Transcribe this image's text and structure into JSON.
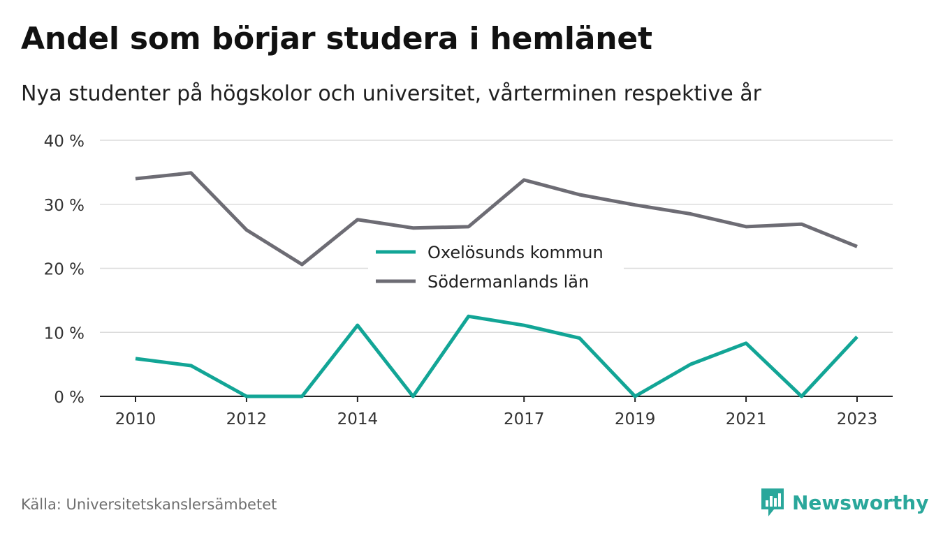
{
  "header": {
    "title": "Andel som börjar studera i hemlänet",
    "subtitle": "Nya studenter på högskolor och universitet, vårterminen respektive år"
  },
  "footer": {
    "source": "Källa: Universitetskanslersämbetet",
    "brand": "Newsworthy"
  },
  "colors": {
    "oxelosund": "#12a596",
    "sodermanland": "#6d6c74",
    "grid": "#dcdcdc",
    "axis": "#222222",
    "brand": "#2aa79b"
  },
  "icons": {
    "logo": "newsworthy-chart-bubble-icon"
  },
  "chart_data": {
    "type": "line",
    "title": "Andel som börjar studera i hemlänet",
    "subtitle": "Nya studenter på högskolor och universitet, vårterminen respektive år",
    "x": [
      2010,
      2011,
      2012,
      2013,
      2014,
      2015,
      2016,
      2017,
      2018,
      2019,
      2020,
      2021,
      2022,
      2023
    ],
    "x_tick_values": [
      2010,
      2012,
      2014,
      2017,
      2019,
      2021,
      2023
    ],
    "x_tick_labels": [
      "2010",
      "2012",
      "2014",
      "2017",
      "2019",
      "2021",
      "2023"
    ],
    "y_tick_values": [
      0,
      10,
      20,
      30,
      40
    ],
    "y_tick_labels": [
      "0 %",
      "10 %",
      "20 %",
      "30 %",
      "40 %"
    ],
    "ylim": [
      0,
      40
    ],
    "xlim": [
      2010,
      2023
    ],
    "grid": true,
    "legend_position": "center",
    "series": [
      {
        "name": "Oxelösunds kommun",
        "color": "#12a596",
        "values": [
          5.9,
          4.8,
          0,
          0,
          11.1,
          0,
          12.5,
          11.1,
          9.1,
          0,
          5.0,
          8.3,
          0,
          9.3
        ]
      },
      {
        "name": "Södermanlands län",
        "color": "#6d6c74",
        "values": [
          34.0,
          34.9,
          26.0,
          20.6,
          27.6,
          26.3,
          26.5,
          33.8,
          31.5,
          29.9,
          28.5,
          26.5,
          26.9,
          23.4
        ]
      }
    ]
  }
}
